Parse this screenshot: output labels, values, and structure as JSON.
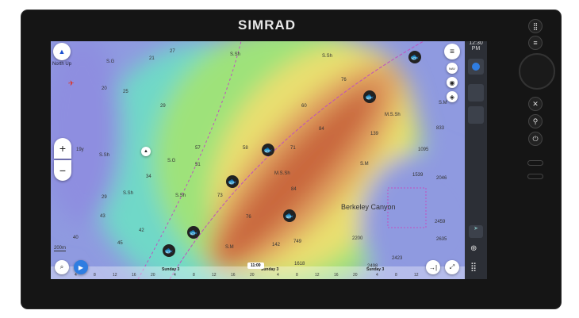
{
  "device": {
    "brand": "SIMRAD"
  },
  "chart": {
    "orientation": "North Up",
    "scale": "200m",
    "region_label": "Berkeley Canyon",
    "depth_labels": [
      "S.Sh",
      "S.Sh",
      "76",
      "27",
      "21",
      "S.G",
      "20",
      "25",
      "29",
      "60",
      "84",
      "71",
      "58",
      "M.S.Sh",
      "84",
      "S.M",
      "M.S.Sh",
      "139",
      "57",
      "51",
      "S.G",
      "34",
      "S.Sh",
      "19y",
      "29",
      "43",
      "40",
      "42",
      "S.Sh",
      "S.Sh",
      "73",
      "76",
      "S.M",
      "45",
      "142",
      "749",
      "1618",
      "2200",
      "2459",
      "2635",
      "2423",
      "2498",
      "1539",
      "2046",
      "1095",
      "833",
      "S.M"
    ]
  },
  "status": {
    "time": "12:30 PM"
  },
  "controls": {
    "zoom_in": "+",
    "zoom_out": "−",
    "nav_label": "NAV",
    "time_bubble": "11:00"
  },
  "timeline": {
    "days": [
      "Sunday 3",
      "Sunday 3",
      "Sunday 3"
    ],
    "ticks": [
      "4",
      "8",
      "12",
      "16",
      "20"
    ]
  },
  "colors": {
    "deep": "#8a8fe0",
    "shallow": "#c0603a",
    "accent": "#2f7de1"
  }
}
